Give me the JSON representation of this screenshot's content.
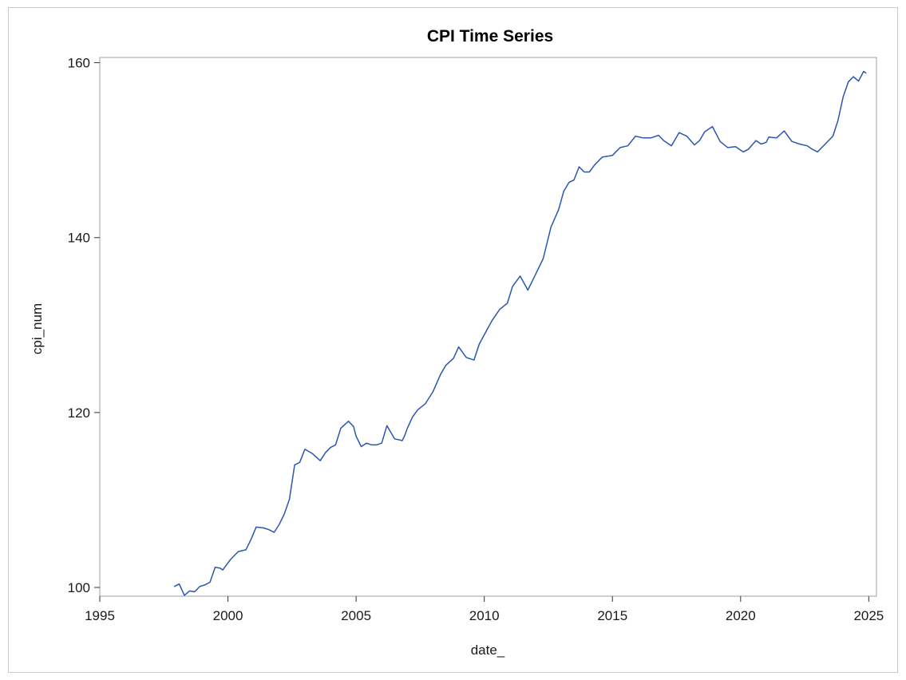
{
  "chart_data": {
    "type": "line",
    "title": "CPI Time Series",
    "xlabel": "date_",
    "ylabel": "cpi_num",
    "xlim": [
      1995,
      2025.3
    ],
    "ylim": [
      99,
      160.6
    ],
    "x_ticks": [
      1995,
      2000,
      2005,
      2010,
      2015,
      2020,
      2025
    ],
    "y_ticks": [
      100,
      120,
      140,
      160
    ],
    "grid": false,
    "legend": "none",
    "line_color": "#2a56b0",
    "series": [
      {
        "x": [
          1997.9,
          1998.1,
          1998.3,
          1998.5,
          1998.7,
          1998.9,
          1999.1,
          1999.3,
          1999.5,
          1999.7,
          1999.8,
          1999.9,
          2000.1,
          2000.4,
          2000.7,
          2000.9,
          2001.1,
          2001.4,
          2001.6,
          2001.8,
          2002.0,
          2002.2,
          2002.4,
          2002.6,
          2002.8,
          2003.0,
          2003.3,
          2003.6,
          2003.8,
          2004.0,
          2004.2,
          2004.4,
          2004.7,
          2004.9,
          2005.0,
          2005.2,
          2005.4,
          2005.6,
          2005.8,
          2006.0,
          2006.2,
          2006.5,
          2006.8,
          2006.9,
          2007.0,
          2007.2,
          2007.4,
          2007.7,
          2008.0,
          2008.3,
          2008.5,
          2008.8,
          2009.0,
          2009.3,
          2009.6,
          2009.8,
          2010.0,
          2010.3,
          2010.6,
          2010.9,
          2011.1,
          2011.4,
          2011.7,
          2012.0,
          2012.3,
          2012.6,
          2012.9,
          2013.1,
          2013.3,
          2013.5,
          2013.7,
          2013.9,
          2014.1,
          2014.3,
          2014.6,
          2014.8,
          2015.0,
          2015.3,
          2015.6,
          2015.9,
          2016.2,
          2016.5,
          2016.8,
          2017.0,
          2017.3,
          2017.6,
          2017.9,
          2018.2,
          2018.4,
          2018.6,
          2018.9,
          2019.2,
          2019.5,
          2019.8,
          2020.1,
          2020.3,
          2020.6,
          2020.8,
          2021.0,
          2021.1,
          2021.4,
          2021.7,
          2022.0,
          2022.3,
          2022.6,
          2022.8,
          2023.0,
          2023.3,
          2023.6,
          2023.8,
          2024.0,
          2024.2,
          2024.4,
          2024.6,
          2024.8,
          2024.9
        ],
        "y": [
          100.1,
          100.4,
          99.1,
          99.6,
          99.5,
          100.1,
          100.3,
          100.6,
          102.3,
          102.2,
          102.0,
          102.4,
          103.2,
          104.1,
          104.3,
          105.5,
          106.9,
          106.8,
          106.6,
          106.3,
          107.2,
          108.4,
          110.1,
          114.0,
          114.3,
          115.8,
          115.3,
          114.5,
          115.4,
          116.0,
          116.3,
          118.2,
          119.0,
          118.4,
          117.3,
          116.1,
          116.5,
          116.3,
          116.3,
          116.5,
          118.5,
          117.0,
          116.8,
          117.4,
          118.2,
          119.5,
          120.3,
          121.0,
          122.4,
          124.4,
          125.4,
          126.2,
          127.5,
          126.3,
          126.0,
          127.8,
          128.9,
          130.5,
          131.8,
          132.5,
          134.4,
          135.6,
          134.0,
          135.8,
          137.6,
          141.2,
          143.2,
          145.3,
          146.3,
          146.6,
          148.1,
          147.5,
          147.5,
          148.3,
          149.2,
          149.3,
          149.4,
          150.3,
          150.5,
          151.6,
          151.4,
          151.4,
          151.7,
          151.1,
          150.5,
          152.0,
          151.6,
          150.6,
          151.1,
          152.1,
          152.7,
          151.0,
          150.3,
          150.4,
          149.8,
          150.1,
          151.1,
          150.7,
          150.9,
          151.5,
          151.4,
          152.2,
          151.0,
          150.7,
          150.5,
          150.1,
          149.8,
          150.7,
          151.6,
          153.4,
          156.1,
          157.8,
          158.4,
          157.9,
          159.0,
          158.8
        ]
      }
    ]
  }
}
